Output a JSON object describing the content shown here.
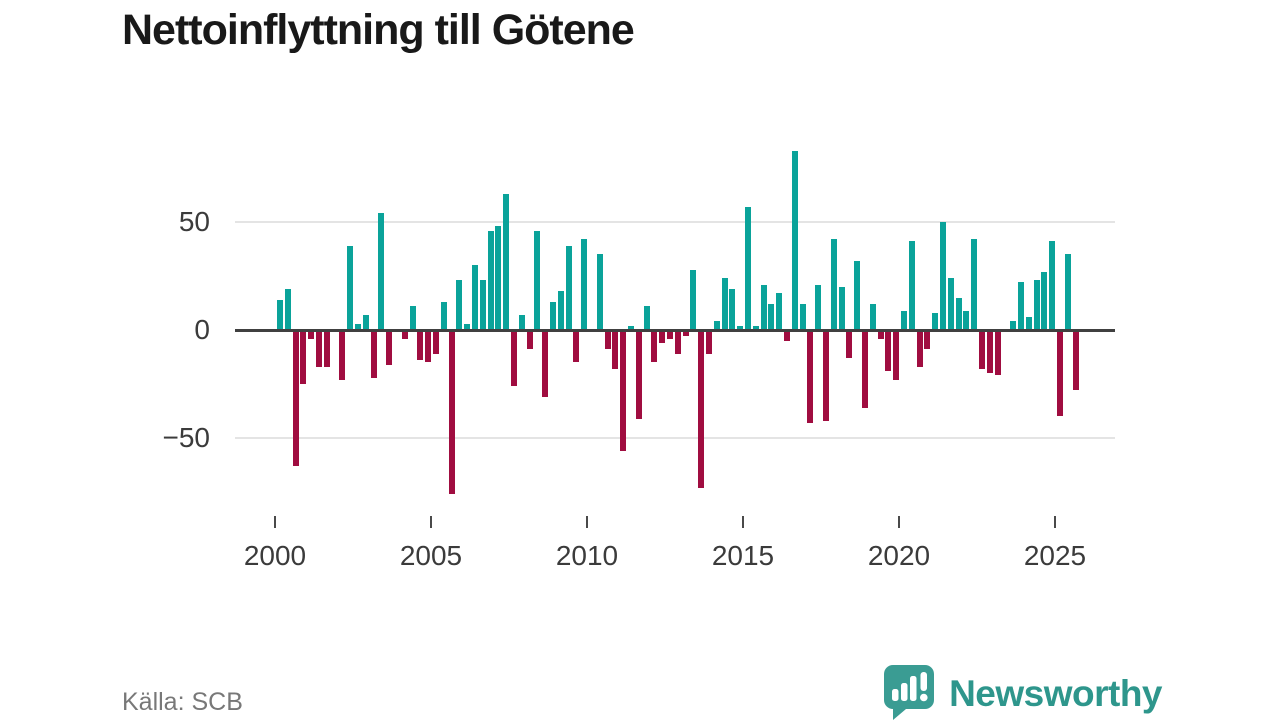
{
  "title": "Nettoinflyttning till Götene",
  "source": "Källa: SCB",
  "brand": {
    "name": "Newsworthy"
  },
  "colors": {
    "positive_bar": "#0aa39a",
    "negative_bar": "#a00d40",
    "axis_line": "#404040",
    "gridline": "#e4e4e4",
    "brand_teal": "#2e968c"
  },
  "chart_data": {
    "type": "bar",
    "title": "Nettoinflyttning till Götene",
    "xlabel": "",
    "ylabel": "",
    "frequency": "quarterly",
    "grid": "horizontal",
    "legend": "none",
    "ylim": [
      -80,
      88
    ],
    "yticks": [
      {
        "label": "50",
        "value": 50
      },
      {
        "label": "0",
        "value": 0
      },
      {
        "label": "−50",
        "value": -50
      }
    ],
    "year_ticks": [
      {
        "label": "2000",
        "year": 2000
      },
      {
        "label": "2005",
        "year": 2005
      },
      {
        "label": "2010",
        "year": 2010
      },
      {
        "label": "2015",
        "year": 2015
      },
      {
        "label": "2020",
        "year": 2020
      },
      {
        "label": "2025",
        "year": 2025
      }
    ],
    "categories": [
      "2000Q1",
      "2000Q2",
      "2000Q3",
      "2000Q4",
      "2001Q1",
      "2001Q2",
      "2001Q3",
      "2001Q4",
      "2002Q1",
      "2002Q2",
      "2002Q3",
      "2002Q4",
      "2003Q1",
      "2003Q2",
      "2003Q3",
      "2003Q4",
      "2004Q1",
      "2004Q2",
      "2004Q3",
      "2004Q4",
      "2005Q1",
      "2005Q2",
      "2005Q3",
      "2005Q4",
      "2006Q1",
      "2006Q2",
      "2006Q3",
      "2006Q4",
      "2007Q1",
      "2007Q2",
      "2007Q3",
      "2007Q4",
      "2008Q1",
      "2008Q2",
      "2008Q3",
      "2008Q4",
      "2009Q1",
      "2009Q2",
      "2009Q3",
      "2009Q4",
      "2010Q1",
      "2010Q2",
      "2010Q3",
      "2010Q4",
      "2011Q1",
      "2011Q2",
      "2011Q3",
      "2011Q4",
      "2012Q1",
      "2012Q2",
      "2012Q3",
      "2012Q4",
      "2013Q1",
      "2013Q2",
      "2013Q3",
      "2013Q4",
      "2014Q1",
      "2014Q2",
      "2014Q3",
      "2014Q4",
      "2015Q1",
      "2015Q2",
      "2015Q3",
      "2015Q4",
      "2016Q1",
      "2016Q2",
      "2016Q3",
      "2016Q4",
      "2017Q1",
      "2017Q2",
      "2017Q3",
      "2017Q4",
      "2018Q1",
      "2018Q2",
      "2018Q3",
      "2018Q4",
      "2019Q1",
      "2019Q2",
      "2019Q3",
      "2019Q4",
      "2020Q1",
      "2020Q2",
      "2020Q3",
      "2020Q4",
      "2021Q1",
      "2021Q2",
      "2021Q3",
      "2021Q4",
      "2022Q1",
      "2022Q2",
      "2022Q3",
      "2022Q4",
      "2023Q1",
      "2023Q2",
      "2023Q3",
      "2023Q4",
      "2024Q1",
      "2024Q2",
      "2024Q3",
      "2024Q4",
      "2025Q1",
      "2025Q2",
      "2025Q3"
    ],
    "values": [
      14,
      19,
      -63,
      -25,
      -4,
      -17,
      -17,
      0,
      -23,
      39,
      3,
      7,
      -22,
      54,
      -16,
      0,
      -4,
      11,
      -14,
      -15,
      -11,
      13,
      -76,
      23,
      3,
      30,
      23,
      46,
      48,
      63,
      -26,
      7,
      -9,
      46,
      -31,
      13,
      18,
      39,
      -15,
      42,
      0,
      35,
      -9,
      -18,
      -56,
      2,
      -41,
      11,
      -15,
      -6,
      -4,
      -11,
      -3,
      28,
      -73,
      -11,
      4,
      24,
      19,
      2,
      57,
      2,
      21,
      12,
      17,
      -5,
      83,
      12,
      -43,
      21,
      -42,
      42,
      20,
      -13,
      32,
      -36,
      12,
      -4,
      -19,
      -23,
      9,
      41,
      -17,
      -9,
      8,
      50,
      24,
      15,
      9,
      42,
      -18,
      -20,
      -21,
      0,
      4,
      22,
      6,
      23,
      27,
      41,
      -40,
      35,
      -28
    ]
  }
}
